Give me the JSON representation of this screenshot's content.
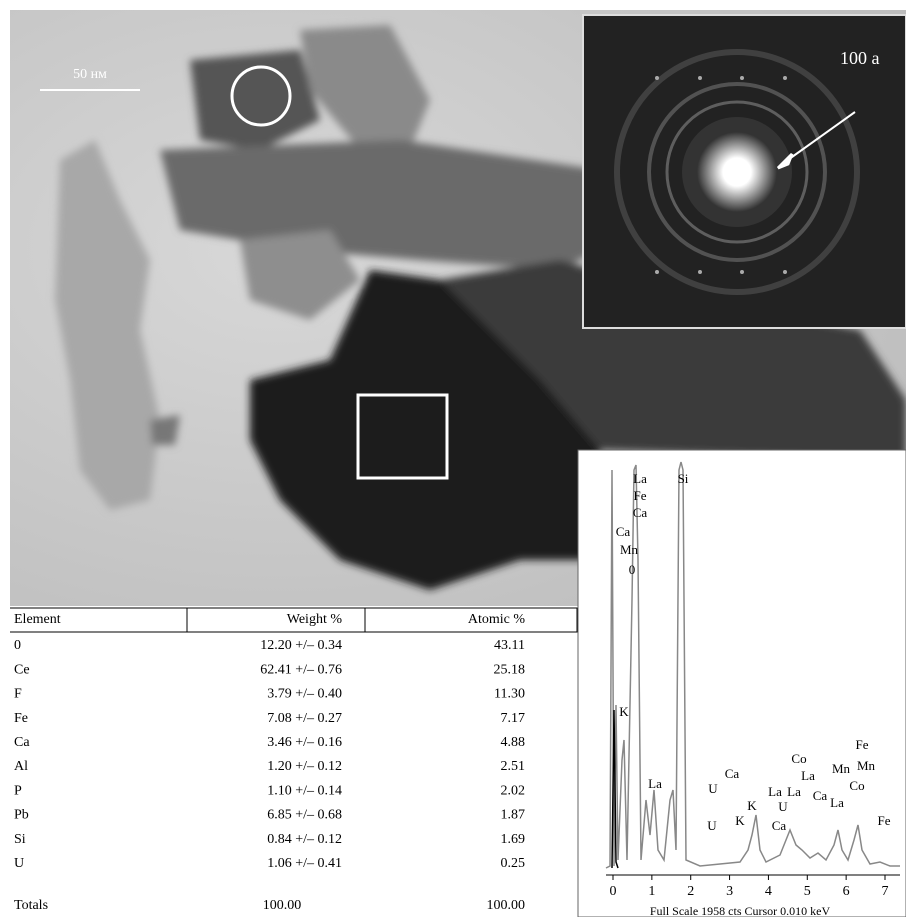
{
  "image": {
    "scale_bar": "50 нм",
    "diffraction_label": "100 a"
  },
  "table": {
    "header": [
      "Element",
      "Weight %",
      "Atomic %"
    ],
    "rows": [
      [
        "0",
        "12.20 +/– 0.34",
        "43.11"
      ],
      [
        "Ce",
        "62.41 +/– 0.76",
        "25.18"
      ],
      [
        "F",
        "3.79 +/– 0.40",
        "11.30"
      ],
      [
        "Fe",
        "7.08 +/– 0.27",
        "7.17"
      ],
      [
        "Ca",
        "3.46 +/– 0.16",
        "4.88"
      ],
      [
        "Al",
        "1.20 +/– 0.12",
        "2.51"
      ],
      [
        "P",
        "1.10 +/– 0.14",
        "2.02"
      ],
      [
        "Pb",
        "6.85 +/– 0.68",
        "1.87"
      ],
      [
        "Si",
        "0.84 +/– 0.12",
        "1.69"
      ],
      [
        "U",
        "1.06 +/– 0.41",
        "0.25"
      ]
    ],
    "totals": [
      "Totals",
      "100.00",
      "100.00"
    ]
  },
  "spectrum": {
    "xlim": [
      0,
      7
    ],
    "xticks": [
      0,
      1,
      2,
      3,
      4,
      5,
      6,
      7
    ],
    "peak_labels": [
      "La",
      "Fe",
      "Ca",
      "Ca",
      "Mn",
      "0",
      "Si",
      "K",
      "La",
      "U",
      "Ca",
      "U",
      "K",
      "K",
      "La",
      "U",
      "Ca",
      "Co",
      "La",
      "La",
      "Ca",
      "La",
      "Mn",
      "Fe",
      "Mn",
      "Co",
      "Fe"
    ],
    "footer": "Full Scale 1958 cts Cursor  0.010 keV"
  }
}
